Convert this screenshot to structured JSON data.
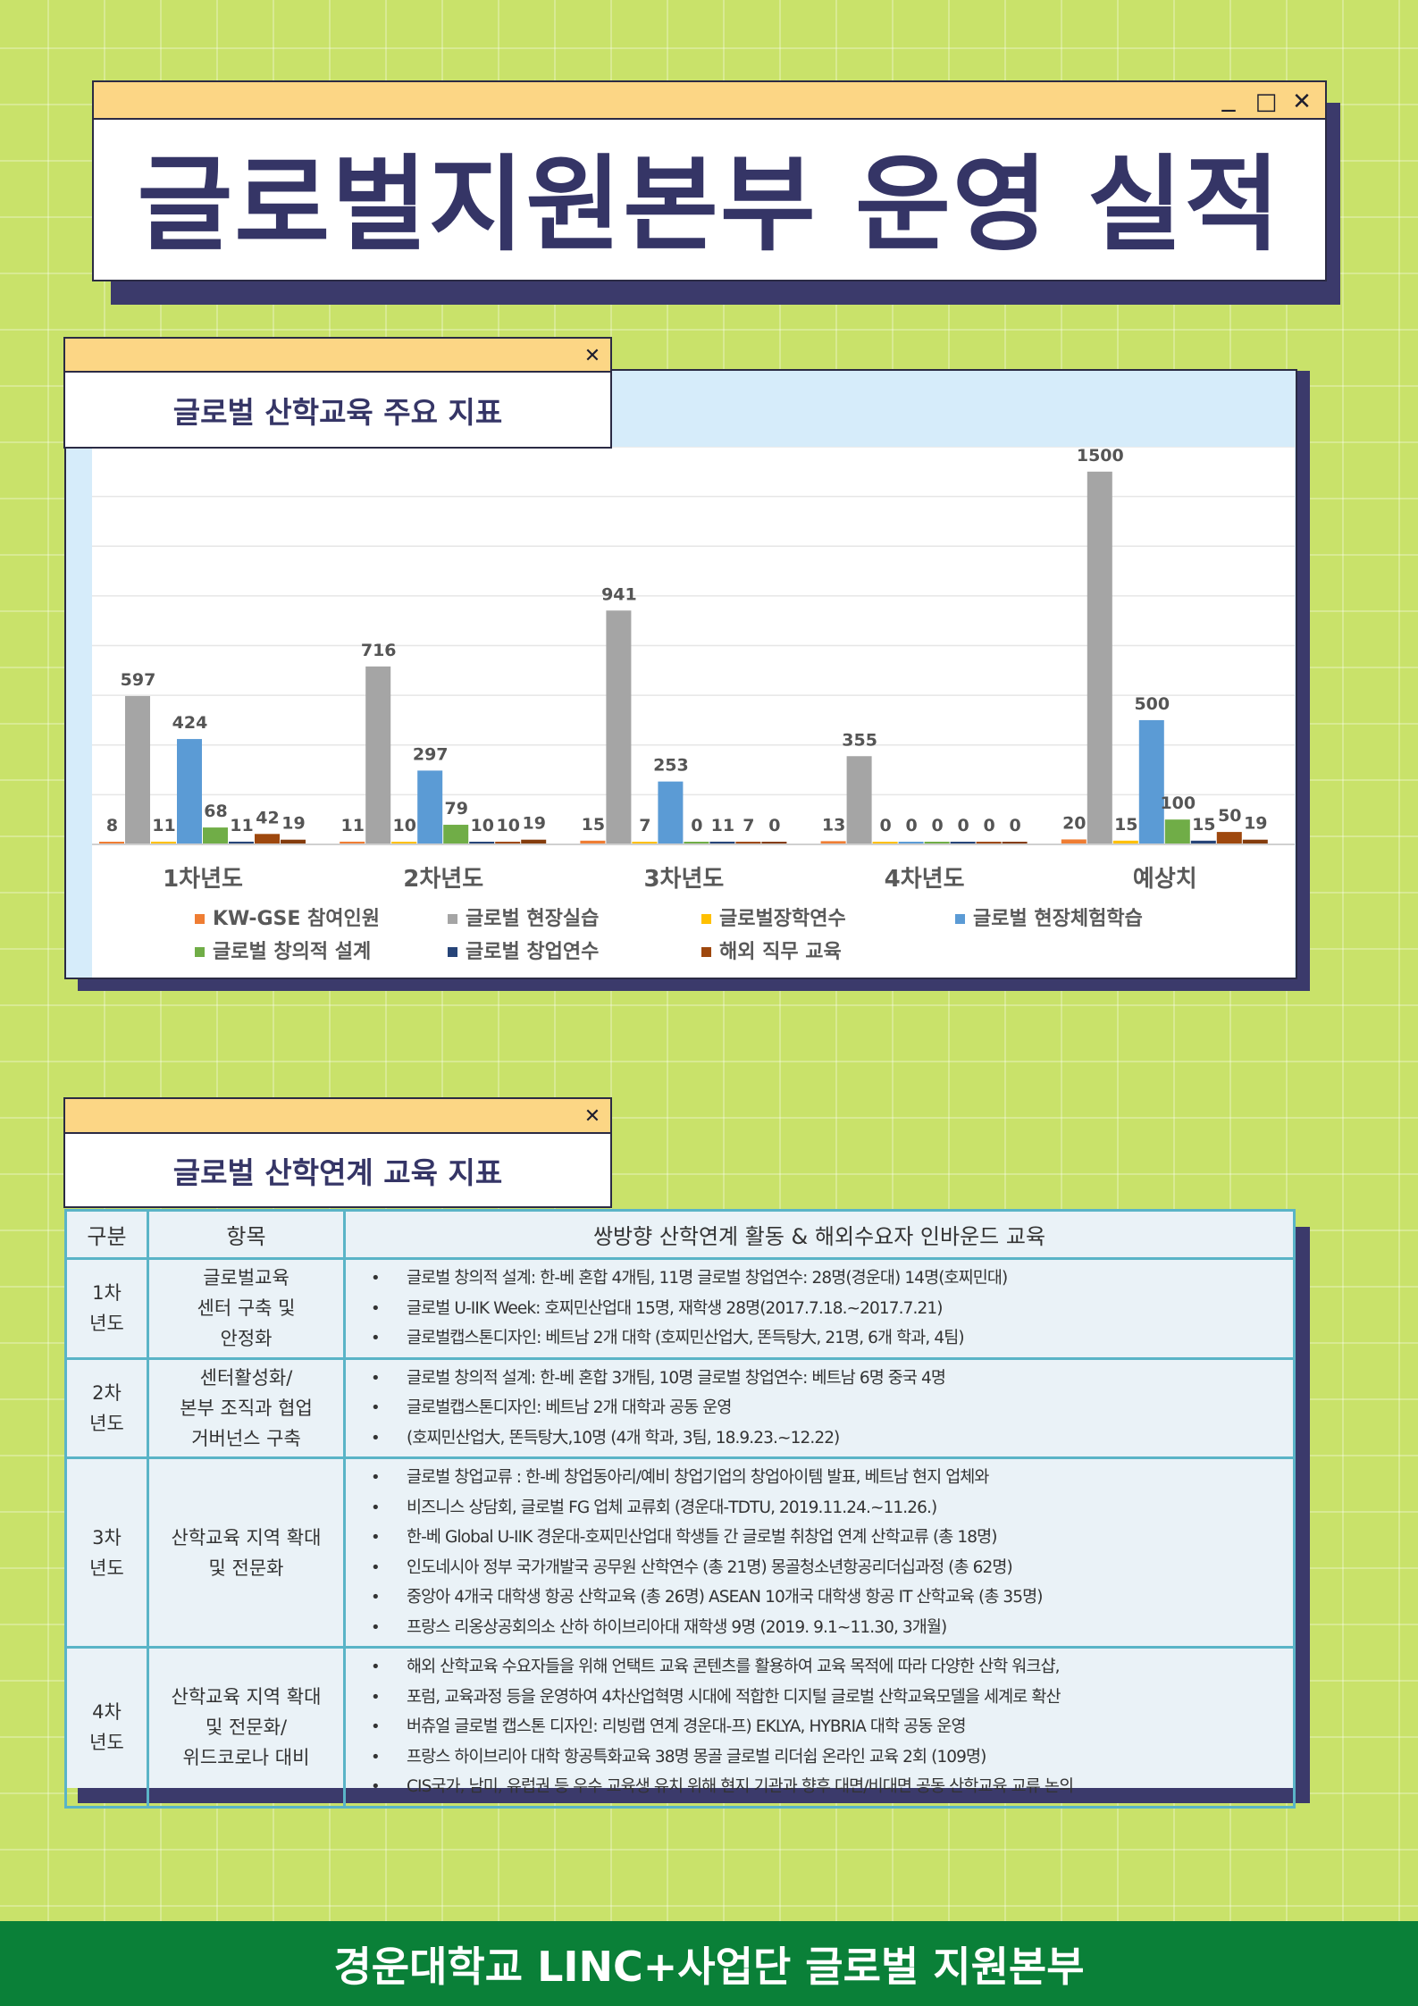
{
  "main_window": {
    "title": "글로벌지원본부 운영 실적",
    "minimize_symbol": "_",
    "maximize_symbol": "□",
    "close_symbol": "✕"
  },
  "chart_window": {
    "tab_title": "글로벌 산학교육 주요 지표",
    "close_symbol": "✕"
  },
  "chart_data": {
    "type": "bar",
    "title": "",
    "xlabel": "",
    "ylabel": "",
    "ylim": [
      0,
      1600
    ],
    "grid": true,
    "legend_position": "bottom",
    "categories": [
      "1차년도",
      "2차년도",
      "3차년도",
      "4차년도",
      "예상치"
    ],
    "series": [
      {
        "name": "KW-GSE 참여인원",
        "color": "#ef7d33",
        "values": [
          8,
          11,
          15,
          13,
          20
        ]
      },
      {
        "name": "글로벌 현장실습",
        "color": "#a5a5a5",
        "values": [
          597,
          716,
          941,
          355,
          1500
        ]
      },
      {
        "name": "글로벌장학연수",
        "color": "#ffc000",
        "values": [
          11,
          10,
          7,
          0,
          15
        ]
      },
      {
        "name": "글로벌 현장체험학습",
        "color": "#5b9bd5",
        "values": [
          424,
          297,
          253,
          0,
          500
        ]
      },
      {
        "name": "글로벌 창의적 설계",
        "color": "#70ad47",
        "values": [
          68,
          79,
          0,
          0,
          100
        ]
      },
      {
        "name": "글로벌 창업연수",
        "color": "#264478",
        "values": [
          11,
          10,
          11,
          0,
          15
        ]
      },
      {
        "name": "해외 직무 교육",
        "color": "#9e480e",
        "values": [
          42,
          10,
          7,
          0,
          50
        ]
      },
      {
        "name": "",
        "color": "#843c0c",
        "values": [
          19,
          19,
          0,
          0,
          19
        ]
      }
    ]
  },
  "table_window": {
    "tab_title": "글로벌 산학연계 교육 지표",
    "close_symbol": "✕"
  },
  "table": {
    "headers": [
      "구분",
      "항목",
      "쌍방향 산학연계 활동 & 해외수요자 인바운드 교육"
    ],
    "rows": [
      {
        "gubun": [
          "1차",
          "년도"
        ],
        "item": [
          "글로벌교육",
          "센터 구축 및",
          "안정화"
        ],
        "bullets": [
          "글로벌 창의적 설계: 한-베 혼합 4개팀, 11명 글로벌 창업연수: 28명(경운대) 14명(호찌민대)",
          "글로벌 U-IIK Week: 호찌민산업대 15명, 재학생 28명(2017.7.18.~2017.7.21)",
          "글로벌캡스톤디자인: 베트남 2개 대학 (호찌민산업大, 똔득탕大, 21명, 6개 학과, 4팀)"
        ]
      },
      {
        "gubun": [
          "2차",
          "년도"
        ],
        "item": [
          "센터활성화/",
          "본부 조직과 협업",
          "거버넌스 구축"
        ],
        "bullets": [
          "글로벌 창의적 설계: 한-베 혼합 3개팀, 10명 글로벌 창업연수: 베트남 6명 중국 4명",
          "글로벌캡스톤디자인: 베트남 2개 대학과 공동 운영",
          "(호찌민산업大, 똔득탕大,10명 (4개 학과, 3팀, 18.9.23.~12.22)"
        ]
      },
      {
        "gubun": [
          "3차",
          "년도"
        ],
        "item": [
          "산학교육 지역 확대",
          "및 전문화"
        ],
        "bullets": [
          "글로벌 창업교류 : 한-베 창업동아리/예비 창업기업의 창업아이템 발표, 베트남 현지 업체와",
          "비즈니스 상담회, 글로벌 FG 업체 교류회 (경운대-TDTU, 2019.11.24.~11.26.)",
          "한-베 Global U-IIK 경운대-호찌민산업대 학생들 간 글로벌 취창업 연계 산학교류 (총 18명)",
          "인도네시아 정부 국가개발국 공무원 산학연수 (총 21명) 몽골청소년항공리더십과정 (총 62명)",
          "중앙아 4개국 대학생 항공 산학교육 (총 26명) ASEAN 10개국 대학생 항공 IT 산학교육 (총 35명)",
          "프랑스 리옹상공회의소 산하 하이브리아대 재학생 9명 (2019. 9.1~11.30, 3개월)"
        ]
      },
      {
        "gubun": [
          "4차",
          "년도"
        ],
        "item": [
          "산학교육 지역 확대",
          "및 전문화/",
          "위드코로나 대비"
        ],
        "bullets": [
          "해외 산학교육 수요자들을 위해 언택트 교육 콘텐츠를 활용하여 교육 목적에 따라 다양한 산학 워크샵,",
          "포럼, 교육과정 등을 운영하여 4차산업혁명 시대에 적합한 디지털 글로벌 산학교육모델을 세계로 확산",
          "버츄얼 글로벌 캡스톤 디자인: 리빙랩 연계 경운대-프) EKLYA, HYBRIA 대학 공동 운영",
          "프랑스 하이브리아 대학 항공특화교육 38명 몽골 글로벌 리더쉽 온라인 교육 2회 (109명)",
          "CIS국가, 남미, 유럽권 등 우수 교육생 유치 위해 현지 기관과 향후 대면/비대면 공동 산학교육 교류 논의"
        ]
      }
    ]
  },
  "footer": {
    "text": "경운대학교 LINC+사업단 글로벌 지원본부"
  }
}
